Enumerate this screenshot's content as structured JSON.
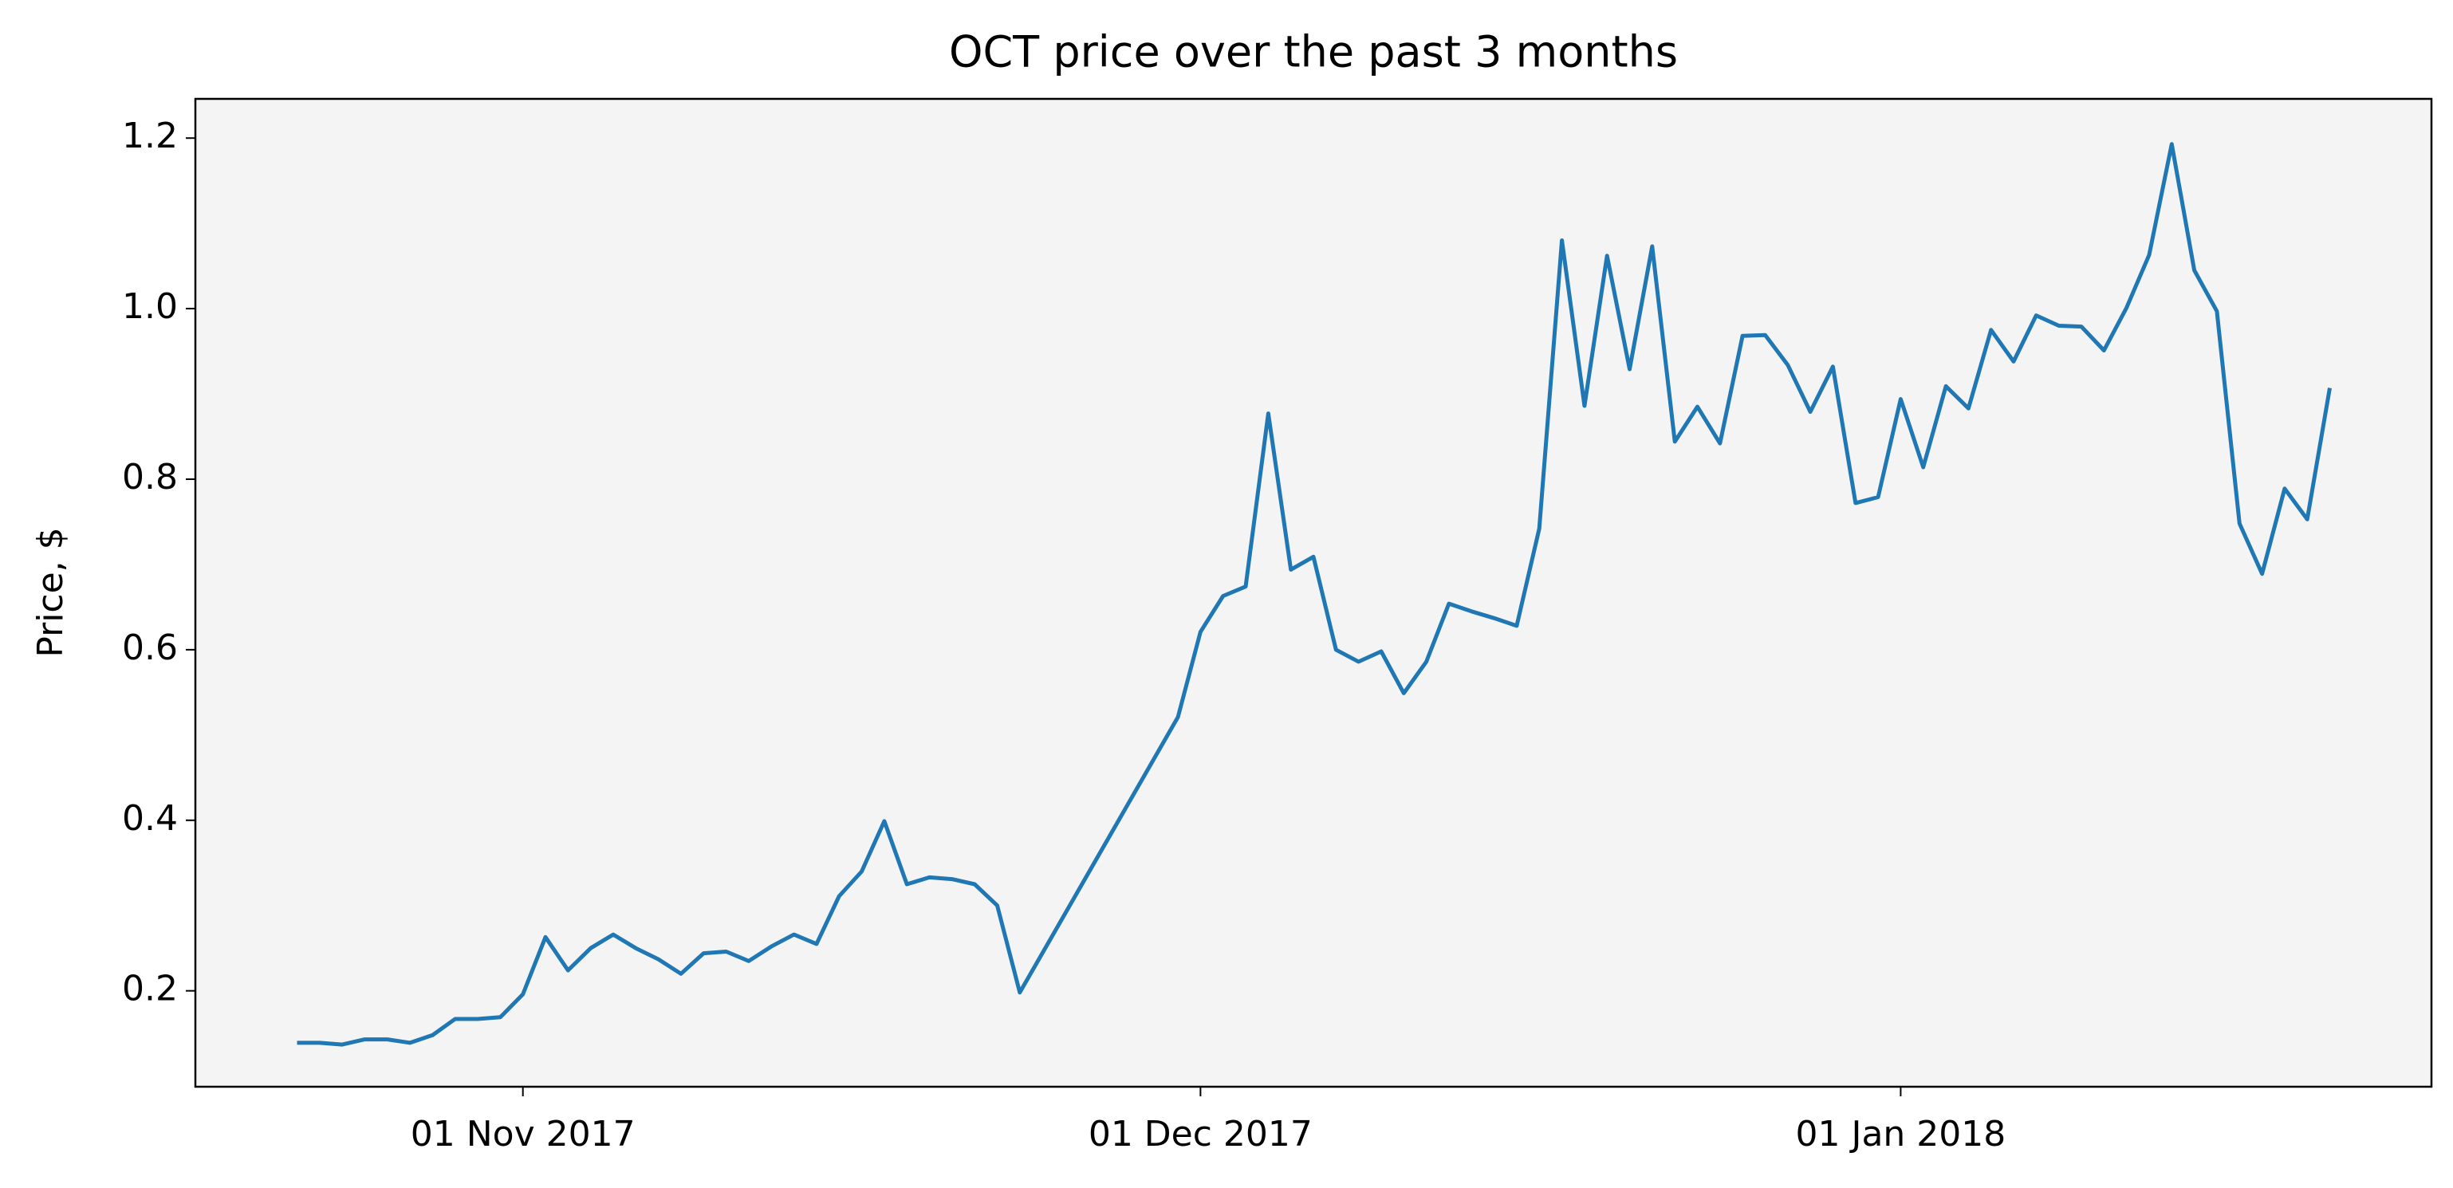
{
  "chart_data": {
    "type": "line",
    "title": "OCT price over the past 3 months",
    "ylabel": "Price, $",
    "color": "#1f77b4",
    "x": [
      "2017-10-22",
      "2017-10-23",
      "2017-10-24",
      "2017-10-25",
      "2017-10-26",
      "2017-10-27",
      "2017-10-28",
      "2017-10-29",
      "2017-10-30",
      "2017-10-31",
      "2017-11-01",
      "2017-11-02",
      "2017-11-03",
      "2017-11-04",
      "2017-11-05",
      "2017-11-06",
      "2017-11-07",
      "2017-11-08",
      "2017-11-09",
      "2017-11-10",
      "2017-11-11",
      "2017-11-12",
      "2017-11-13",
      "2017-11-14",
      "2017-11-15",
      "2017-11-16",
      "2017-11-17",
      "2017-11-18",
      "2017-11-19",
      "2017-11-20",
      "2017-11-21",
      "2017-11-22",
      "2017-11-23",
      "2017-11-30",
      "2017-12-01",
      "2017-12-02",
      "2017-12-03",
      "2017-12-04",
      "2017-12-05",
      "2017-12-06",
      "2017-12-07",
      "2017-12-08",
      "2017-12-09",
      "2017-12-10",
      "2017-12-11",
      "2017-12-12",
      "2017-12-13",
      "2017-12-14",
      "2017-12-15",
      "2017-12-16",
      "2017-12-17",
      "2017-12-18",
      "2017-12-19",
      "2017-12-20",
      "2017-12-21",
      "2017-12-22",
      "2017-12-23",
      "2017-12-24",
      "2017-12-25",
      "2017-12-26",
      "2017-12-27",
      "2017-12-28",
      "2017-12-29",
      "2017-12-30",
      "2017-12-31",
      "2018-01-01",
      "2018-01-02",
      "2018-01-03",
      "2018-01-04",
      "2018-01-05",
      "2018-01-06",
      "2018-01-07",
      "2018-01-08",
      "2018-01-09",
      "2018-01-10",
      "2018-01-11",
      "2018-01-12",
      "2018-01-13",
      "2018-01-14",
      "2018-01-15",
      "2018-01-16",
      "2018-01-17",
      "2018-01-18",
      "2018-01-19",
      "2018-01-20"
    ],
    "values": [
      0.139,
      0.139,
      0.137,
      0.143,
      0.143,
      0.139,
      0.148,
      0.167,
      0.167,
      0.169,
      0.196,
      0.263,
      0.224,
      0.25,
      0.266,
      0.25,
      0.237,
      0.22,
      0.244,
      0.246,
      0.235,
      0.252,
      0.266,
      0.255,
      0.311,
      0.34,
      0.399,
      0.325,
      0.333,
      0.331,
      0.325,
      0.3,
      0.198,
      0.521,
      0.621,
      0.663,
      0.674,
      0.877,
      0.694,
      0.709,
      0.6,
      0.586,
      0.598,
      0.549,
      0.586,
      0.654,
      0.645,
      0.637,
      0.628,
      0.742,
      1.08,
      0.886,
      1.062,
      0.929,
      1.073,
      0.844,
      0.885,
      0.842,
      0.968,
      0.969,
      0.934,
      0.879,
      0.932,
      0.772,
      0.779,
      0.894,
      0.814,
      0.909,
      0.883,
      0.975,
      0.938,
      0.992,
      0.98,
      0.979,
      0.951,
      1.001,
      1.063,
      1.193,
      1.045,
      0.997,
      0.748,
      0.689,
      0.789,
      0.753,
      0.907
    ],
    "xlim": [
      "2017-10-17T12:00Z",
      "2018-01-24T12:00Z"
    ],
    "xticks": [
      {
        "value": "2017-11-01",
        "label": "01 Nov 2017"
      },
      {
        "value": "2017-12-01",
        "label": "01 Dec 2017"
      },
      {
        "value": "2018-01-01",
        "label": "01 Jan 2018"
      }
    ],
    "ylim": [
      0.0875,
      1.246
    ],
    "yticks": [
      0.2,
      0.4,
      0.6,
      0.8,
      {
        "value": 1,
        "label": "1.0"
      },
      1.2
    ],
    "grid": false
  }
}
